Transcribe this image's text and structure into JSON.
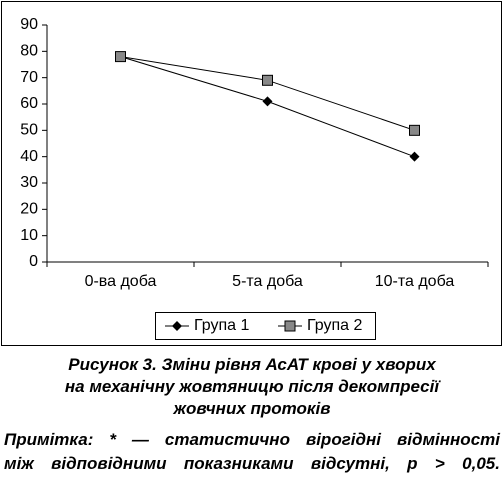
{
  "chart_data": {
    "type": "line",
    "categories": [
      "0-ва доба",
      "5-та доба",
      "10-та доба"
    ],
    "series": [
      {
        "name": "Група 1",
        "color": "#000000",
        "marker": "diamond",
        "values": [
          78,
          61,
          40
        ]
      },
      {
        "name": "Група 2",
        "color": "#000000",
        "marker": "square",
        "values": [
          78,
          69,
          50
        ]
      }
    ],
    "ylim": [
      0,
      90
    ],
    "yticks": [
      0,
      10,
      20,
      30,
      40,
      50,
      60,
      70,
      80,
      90
    ],
    "grid": false,
    "legend": "bottom"
  },
  "caption": {
    "lines": [
      "Рисунок 3. Зміни рівня АсАТ крові у хворих",
      "на механічну жовтяницю після декомпресії",
      "жовчних протоків"
    ]
  },
  "note": {
    "lines": [
      "Примітка: * — статистично вірогідні відмінності",
      "між відповідними показниками відсутні, p > 0,05."
    ]
  }
}
